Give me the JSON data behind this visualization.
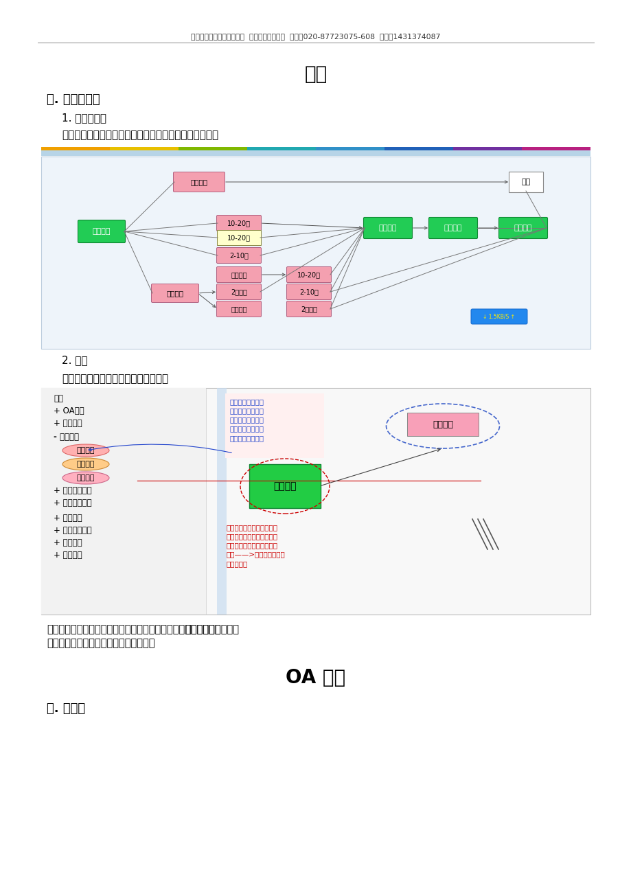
{
  "header_text": "广州建软软件技术有限公司  销售代表：袁先生  电话：020-87723075-608  手机：1431374087",
  "title": "首页",
  "section1": "一. 项目流程图",
  "subsection1": "1. 项目流程图",
  "para1": "进入系统后，首先显示的是项目管理的流程图，如下图：",
  "section2_num": "2. 功能",
  "para2": "实现直观快捷管理项目功能，如下图：",
  "desc_text1": "双击绿色的方框将跳转到对应的页面上，双击红色的方框将跳转到统计表",
  "desc_text1b": "【立项总览】",
  "desc_text2": "里，并自动默认对应的查询条件进行查询",
  "title2": "OA 办公",
  "section3": "一. 工作流",
  "bg_color": "#ffffff"
}
